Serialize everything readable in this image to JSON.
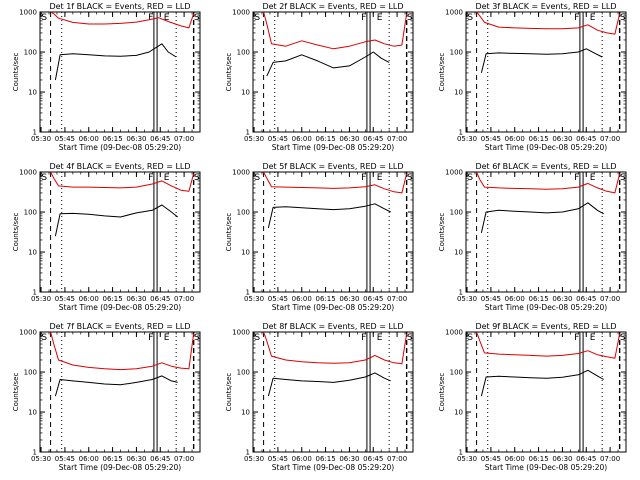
{
  "figure": {
    "ylabel": "Counts/sec",
    "xlabel": "Start Time (09-Dec-08 05:29:20)",
    "x_tick_labels": [
      "05:30",
      "05:45",
      "06:00",
      "06:15",
      "06:30",
      "06:45",
      "07:00"
    ],
    "y_tick_labels": [
      "1",
      "10",
      "100",
      "1000"
    ],
    "markers": [
      "S",
      "F",
      "E",
      "S"
    ],
    "colors": {
      "events": "#000000",
      "lld": "#dd0000",
      "axes": "#000000"
    }
  },
  "chart_data": [
    {
      "type": "line",
      "title": "Det 1f BLACK = Events, RED = LLD",
      "xlim": [
        "05:29:20",
        "07:10:00"
      ],
      "ylim": [
        1,
        1000
      ],
      "yscale": "log",
      "series": [
        {
          "name": "Events",
          "color": "#000000",
          "x": [
            "05:39",
            "05:42",
            "05:50",
            "06:00",
            "06:10",
            "06:20",
            "06:30",
            "06:38",
            "06:46",
            "06:50",
            "06:55"
          ],
          "y": [
            20,
            85,
            90,
            85,
            80,
            78,
            82,
            100,
            160,
            100,
            75
          ]
        },
        {
          "name": "LLD",
          "color": "#dd0000",
          "x": [
            "05:36",
            "05:38",
            "05:41",
            "05:50",
            "06:00",
            "06:10",
            "06:20",
            "06:30",
            "06:38",
            "06:44",
            "06:50",
            "06:58",
            "07:03",
            "07:06"
          ],
          "y": [
            1000,
            900,
            700,
            550,
            500,
            500,
            520,
            560,
            640,
            720,
            580,
            450,
            400,
            900
          ]
        }
      ]
    },
    {
      "type": "line",
      "title": "Det 2f BLACK = Events, RED = LLD",
      "xlim": [
        "05:29:20",
        "07:10:00"
      ],
      "ylim": [
        1,
        1000
      ],
      "yscale": "log",
      "series": [
        {
          "name": "Events",
          "color": "#000000",
          "x": [
            "05:38",
            "05:42",
            "05:50",
            "06:00",
            "06:10",
            "06:20",
            "06:30",
            "06:40",
            "06:45",
            "06:50",
            "06:55"
          ],
          "y": [
            25,
            55,
            60,
            85,
            60,
            40,
            45,
            75,
            100,
            70,
            55
          ]
        },
        {
          "name": "LLD",
          "color": "#dd0000",
          "x": [
            "05:36",
            "05:38",
            "05:41",
            "05:50",
            "06:00",
            "06:10",
            "06:20",
            "06:30",
            "06:40",
            "06:46",
            "06:52",
            "06:58",
            "07:03",
            "07:06"
          ],
          "y": [
            1000,
            500,
            160,
            140,
            190,
            150,
            120,
            140,
            180,
            200,
            160,
            140,
            150,
            900
          ]
        }
      ]
    },
    {
      "type": "line",
      "title": "Det 3f BLACK = Events, RED = LLD",
      "xlim": [
        "05:29:20",
        "07:10:00"
      ],
      "ylim": [
        1,
        1000
      ],
      "yscale": "log",
      "series": [
        {
          "name": "Events",
          "color": "#000000",
          "x": [
            "05:39",
            "05:42",
            "05:50",
            "06:00",
            "06:10",
            "06:20",
            "06:30",
            "06:40",
            "06:45",
            "06:50",
            "06:55"
          ],
          "y": [
            30,
            90,
            95,
            92,
            90,
            88,
            90,
            100,
            120,
            95,
            75
          ]
        },
        {
          "name": "LLD",
          "color": "#dd0000",
          "x": [
            "05:36",
            "05:38",
            "05:41",
            "05:50",
            "06:00",
            "06:10",
            "06:20",
            "06:30",
            "06:40",
            "06:46",
            "06:52",
            "06:58",
            "07:03",
            "07:06"
          ],
          "y": [
            1000,
            800,
            550,
            420,
            400,
            390,
            380,
            380,
            400,
            480,
            350,
            300,
            280,
            900
          ]
        }
      ]
    },
    {
      "type": "line",
      "title": "Det 4f BLACK = Events, RED = LLD",
      "xlim": [
        "05:29:20",
        "07:10:00"
      ],
      "ylim": [
        1,
        1000
      ],
      "yscale": "log",
      "series": [
        {
          "name": "Events",
          "color": "#000000",
          "x": [
            "05:39",
            "05:42",
            "05:50",
            "06:00",
            "06:10",
            "06:20",
            "06:30",
            "06:40",
            "06:46",
            "06:52",
            "06:56"
          ],
          "y": [
            25,
            90,
            92,
            88,
            80,
            75,
            95,
            110,
            150,
            100,
            75
          ]
        },
        {
          "name": "LLD",
          "color": "#dd0000",
          "x": [
            "05:36",
            "05:38",
            "05:41",
            "05:50",
            "06:00",
            "06:10",
            "06:20",
            "06:30",
            "06:40",
            "06:46",
            "06:52",
            "06:58",
            "07:03",
            "07:06"
          ],
          "y": [
            1000,
            700,
            450,
            420,
            420,
            410,
            400,
            420,
            500,
            600,
            450,
            350,
            330,
            900
          ]
        }
      ]
    },
    {
      "type": "line",
      "title": "Det 5f BLACK = Events, RED = LLD",
      "xlim": [
        "05:29:20",
        "07:10:00"
      ],
      "ylim": [
        1,
        1000
      ],
      "yscale": "log",
      "series": [
        {
          "name": "Events",
          "color": "#000000",
          "x": [
            "05:39",
            "05:42",
            "05:50",
            "06:00",
            "06:10",
            "06:20",
            "06:30",
            "06:40",
            "06:46",
            "06:52",
            "06:56"
          ],
          "y": [
            40,
            130,
            135,
            128,
            120,
            115,
            120,
            140,
            160,
            120,
            100
          ]
        },
        {
          "name": "LLD",
          "color": "#dd0000",
          "x": [
            "05:36",
            "05:38",
            "05:41",
            "05:50",
            "06:00",
            "06:10",
            "06:20",
            "06:30",
            "06:40",
            "06:46",
            "06:52",
            "06:58",
            "07:03",
            "07:06"
          ],
          "y": [
            1000,
            700,
            430,
            420,
            410,
            400,
            390,
            400,
            430,
            480,
            380,
            320,
            300,
            900
          ]
        }
      ]
    },
    {
      "type": "line",
      "title": "Det 6f BLACK = Events, RED = LLD",
      "xlim": [
        "05:29:20",
        "07:10:00"
      ],
      "ylim": [
        1,
        1000
      ],
      "yscale": "log",
      "series": [
        {
          "name": "Events",
          "color": "#000000",
          "x": [
            "05:39",
            "05:42",
            "05:50",
            "06:00",
            "06:10",
            "06:20",
            "06:30",
            "06:40",
            "06:46",
            "06:52",
            "06:56"
          ],
          "y": [
            30,
            100,
            110,
            105,
            100,
            95,
            100,
            120,
            170,
            110,
            90
          ]
        },
        {
          "name": "LLD",
          "color": "#dd0000",
          "x": [
            "05:36",
            "05:38",
            "05:41",
            "05:50",
            "06:00",
            "06:10",
            "06:20",
            "06:30",
            "06:40",
            "06:46",
            "06:52",
            "06:58",
            "07:03",
            "07:06"
          ],
          "y": [
            1000,
            650,
            420,
            400,
            390,
            380,
            370,
            380,
            420,
            520,
            400,
            330,
            300,
            900
          ]
        }
      ]
    },
    {
      "type": "line",
      "title": "Det 7f BLACK = Events, RED = LLD",
      "xlim": [
        "05:29:20",
        "07:10:00"
      ],
      "ylim": [
        1,
        1000
      ],
      "yscale": "log",
      "series": [
        {
          "name": "Events",
          "color": "#000000",
          "x": [
            "05:39",
            "05:42",
            "05:50",
            "06:00",
            "06:10",
            "06:20",
            "06:30",
            "06:40",
            "06:46",
            "06:52",
            "06:56"
          ],
          "y": [
            25,
            65,
            60,
            55,
            50,
            48,
            55,
            65,
            80,
            60,
            55
          ]
        },
        {
          "name": "LLD",
          "color": "#dd0000",
          "x": [
            "05:36",
            "05:38",
            "05:41",
            "05:50",
            "06:00",
            "06:10",
            "06:20",
            "06:30",
            "06:40",
            "06:46",
            "06:52",
            "06:58",
            "07:03",
            "07:06"
          ],
          "y": [
            1000,
            500,
            200,
            150,
            130,
            120,
            115,
            120,
            140,
            170,
            140,
            125,
            120,
            900
          ]
        }
      ]
    },
    {
      "type": "line",
      "title": "Det 8f BLACK = Events, RED = LLD",
      "xlim": [
        "05:29:20",
        "07:10:00"
      ],
      "ylim": [
        1,
        1000
      ],
      "yscale": "log",
      "series": [
        {
          "name": "Events",
          "color": "#000000",
          "x": [
            "05:39",
            "05:42",
            "05:50",
            "06:00",
            "06:10",
            "06:20",
            "06:30",
            "06:40",
            "06:46",
            "06:52",
            "06:56"
          ],
          "y": [
            25,
            70,
            65,
            60,
            58,
            55,
            62,
            75,
            95,
            70,
            60
          ]
        },
        {
          "name": "LLD",
          "color": "#dd0000",
          "x": [
            "05:36",
            "05:38",
            "05:41",
            "05:50",
            "06:00",
            "06:10",
            "06:20",
            "06:30",
            "06:40",
            "06:46",
            "06:52",
            "06:58",
            "07:03",
            "07:06"
          ],
          "y": [
            1000,
            600,
            250,
            200,
            180,
            170,
            165,
            170,
            200,
            260,
            200,
            170,
            160,
            900
          ]
        }
      ]
    },
    {
      "type": "line",
      "title": "Det 9f BLACK = Events, RED = LLD",
      "xlim": [
        "05:29:20",
        "07:10:00"
      ],
      "ylim": [
        1,
        1000
      ],
      "yscale": "log",
      "series": [
        {
          "name": "Events",
          "color": "#000000",
          "x": [
            "05:39",
            "05:42",
            "05:50",
            "06:00",
            "06:10",
            "06:20",
            "06:30",
            "06:40",
            "06:46",
            "06:52",
            "06:56"
          ],
          "y": [
            25,
            75,
            78,
            75,
            72,
            70,
            74,
            85,
            110,
            80,
            65
          ]
        },
        {
          "name": "LLD",
          "color": "#dd0000",
          "x": [
            "05:36",
            "05:38",
            "05:41",
            "05:50",
            "06:00",
            "06:10",
            "06:20",
            "06:30",
            "06:40",
            "06:46",
            "06:52",
            "06:58",
            "07:03",
            "07:06"
          ],
          "y": [
            1000,
            600,
            300,
            280,
            270,
            260,
            250,
            260,
            290,
            340,
            270,
            240,
            220,
            900
          ]
        }
      ]
    }
  ]
}
